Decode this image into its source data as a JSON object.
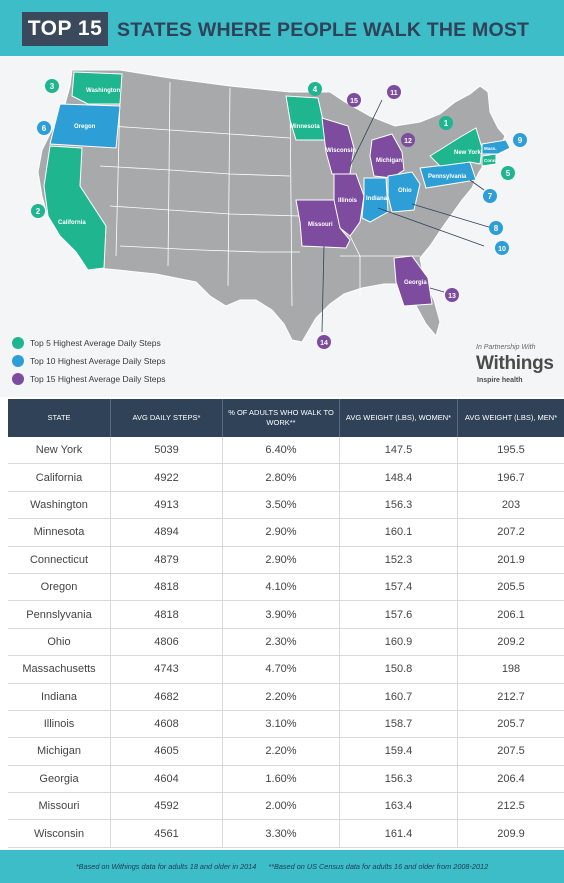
{
  "header": {
    "badge": "TOP 15",
    "title": "STATES WHERE PEOPLE WALK THE MOST"
  },
  "colors": {
    "teal_header": "#3cbdc8",
    "navy": "#2f4258",
    "top5": "#1fb58f",
    "top10": "#2e9fd6",
    "top15": "#7d4c9e",
    "map_gray": "#a8a9ab"
  },
  "map": {
    "states": [
      {
        "rank": "1",
        "name": "New York",
        "tier": "top5"
      },
      {
        "rank": "2",
        "name": "California",
        "tier": "top5"
      },
      {
        "rank": "3",
        "name": "Washington",
        "tier": "top5"
      },
      {
        "rank": "4",
        "name": "Minnesota",
        "tier": "top5"
      },
      {
        "rank": "5",
        "name": "Conn.",
        "tier": "top5"
      },
      {
        "rank": "6",
        "name": "Oregon",
        "tier": "top10"
      },
      {
        "rank": "7",
        "name": "Pennsylvania",
        "tier": "top10"
      },
      {
        "rank": "8",
        "name": "Ohio",
        "tier": "top10"
      },
      {
        "rank": "9",
        "name": "Mass.",
        "tier": "top10"
      },
      {
        "rank": "10",
        "name": "Indiana",
        "tier": "top10"
      },
      {
        "rank": "11",
        "name": "Illinois",
        "tier": "top15"
      },
      {
        "rank": "12",
        "name": "Michigan",
        "tier": "top15"
      },
      {
        "rank": "13",
        "name": "Georgia",
        "tier": "top15"
      },
      {
        "rank": "14",
        "name": "Missouri",
        "tier": "top15"
      },
      {
        "rank": "15",
        "name": "Wisconsin",
        "tier": "top15"
      }
    ]
  },
  "legend": [
    {
      "label": "Top 5 Highest Average Daily Steps",
      "color": "#1fb58f"
    },
    {
      "label": "Top 10 Highest Average Daily Steps",
      "color": "#2e9fd6"
    },
    {
      "label": "Top 15 Highest Average Daily Steps",
      "color": "#7d4c9e"
    }
  ],
  "partner": {
    "intro": "In Partnership With",
    "brand": "Withings",
    "tagline": "Inspire health"
  },
  "table": {
    "headers": [
      "STATE",
      "AVG DAILY STEPS*",
      "% OF ADULTS WHO WALK TO WORK**",
      "AVG WEIGHT (LBS), WOMEN*",
      "AVG WEIGHT (LBS), MEN*"
    ],
    "rows": [
      [
        "New York",
        "5039",
        "6.40%",
        "147.5",
        "195.5"
      ],
      [
        "California",
        "4922",
        "2.80%",
        "148.4",
        "196.7"
      ],
      [
        "Washington",
        "4913",
        "3.50%",
        "156.3",
        "203"
      ],
      [
        "Minnesota",
        "4894",
        "2.90%",
        "160.1",
        "207.2"
      ],
      [
        "Connecticut",
        "4879",
        "2.90%",
        "152.3",
        "201.9"
      ],
      [
        "Oregon",
        "4818",
        "4.10%",
        "157.4",
        "205.5"
      ],
      [
        "Pennslyvania",
        "4818",
        "3.90%",
        "157.6",
        "206.1"
      ],
      [
        "Ohio",
        "4806",
        "2.30%",
        "160.9",
        "209.2"
      ],
      [
        "Massachusetts",
        "4743",
        "4.70%",
        "150.8",
        "198"
      ],
      [
        "Indiana",
        "4682",
        "2.20%",
        "160.7",
        "212.7"
      ],
      [
        "Illinois",
        "4608",
        "3.10%",
        "158.7",
        "205.7"
      ],
      [
        "Michigan",
        "4605",
        "2.20%",
        "159.4",
        "207.5"
      ],
      [
        "Georgia",
        "4604",
        "1.60%",
        "156.3",
        "206.4"
      ],
      [
        "Missouri",
        "4592",
        "2.00%",
        "163.4",
        "212.5"
      ],
      [
        "Wisconsin",
        "4561",
        "3.30%",
        "161.4",
        "209.9"
      ]
    ]
  },
  "footnotes": {
    "left": "*Based on Withings data for adults 18 and older in 2014",
    "right": "**Based on US Census data for adults 16 and older from 2008-2012"
  }
}
